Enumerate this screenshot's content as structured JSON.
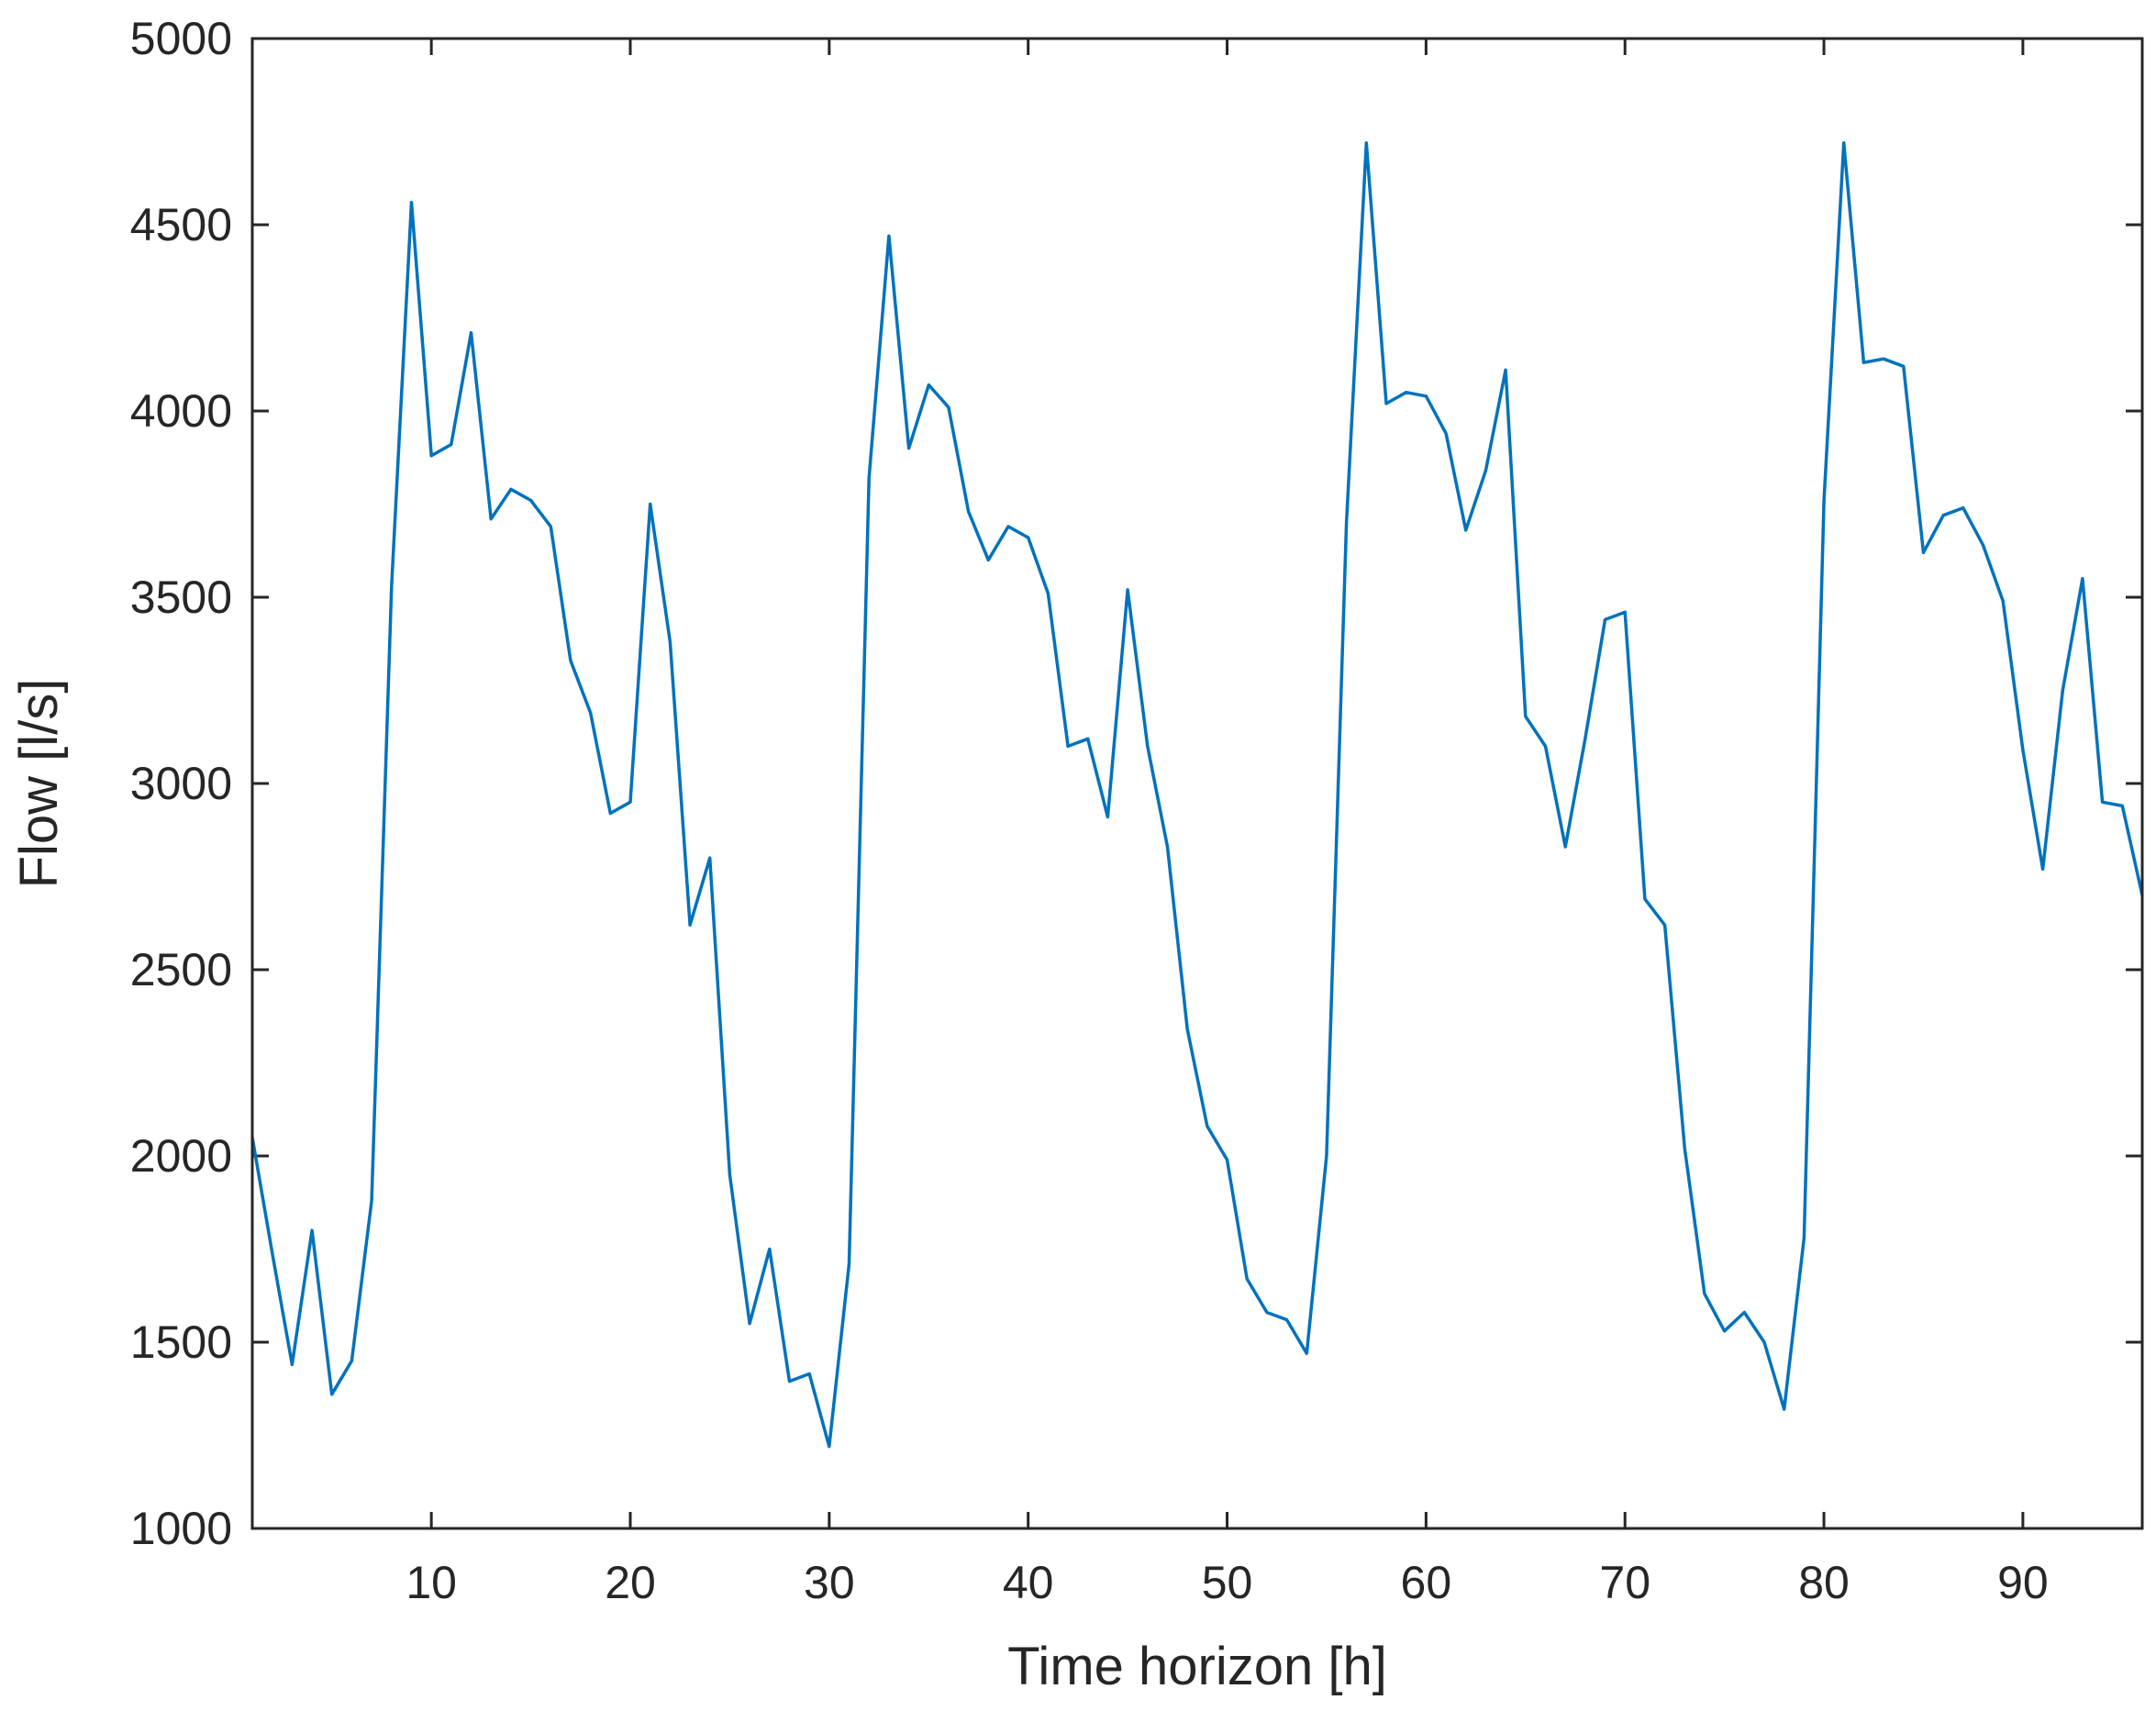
{
  "chart_data": {
    "type": "line",
    "xlabel": "Time horizon [h]",
    "ylabel": "Flow [l/s]",
    "xlim": [
      1,
      96
    ],
    "ylim": [
      1000,
      5000
    ],
    "xticks": [
      10,
      20,
      30,
      40,
      50,
      60,
      70,
      80,
      90
    ],
    "yticks": [
      1000,
      1500,
      2000,
      2500,
      3000,
      3500,
      4000,
      4500,
      5000
    ],
    "grid": false,
    "series": [
      {
        "color": "#0072BD",
        "x": [
          1,
          2,
          3,
          4,
          5,
          6,
          7,
          8,
          9,
          10,
          11,
          12,
          13,
          14,
          15,
          16,
          17,
          18,
          19,
          20,
          21,
          22,
          23,
          24,
          25,
          26,
          27,
          28,
          29,
          30,
          31,
          32,
          33,
          34,
          35,
          36,
          37,
          38,
          39,
          40,
          41,
          42,
          43,
          44,
          45,
          46,
          47,
          48,
          49,
          50,
          51,
          52,
          53,
          54,
          55,
          56,
          57,
          58,
          59,
          60,
          61,
          62,
          63,
          64,
          65,
          66,
          67,
          68,
          69,
          70,
          71,
          72,
          73,
          74,
          75,
          76,
          77,
          78,
          79,
          80,
          81,
          82,
          83,
          84,
          85,
          86,
          87,
          88,
          89,
          90,
          91,
          92,
          93,
          94,
          95,
          96
        ],
        "y": [
          2050,
          1740,
          1440,
          1800,
          1360,
          1450,
          1880,
          3530,
          4560,
          3880,
          3910,
          4210,
          3710,
          3790,
          3760,
          3690,
          3330,
          3190,
          2920,
          2950,
          3750,
          3380,
          2620,
          2800,
          1950,
          1550,
          1750,
          1395,
          1415,
          1220,
          1710,
          3820,
          4470,
          3900,
          4070,
          4010,
          3730,
          3600,
          3690,
          3660,
          3510,
          3100,
          3120,
          2910,
          3520,
          3100,
          2830,
          2340,
          2080,
          1990,
          1670,
          1580,
          1560,
          1470,
          2000,
          3700,
          4720,
          4020,
          4050,
          4040,
          3940,
          3680,
          3840,
          4110,
          3180,
          3100,
          2830,
          3120,
          3440,
          3460,
          2690,
          2620,
          2020,
          1630,
          1530,
          1580,
          1500,
          1320,
          1780,
          3760,
          4720,
          4130,
          4140,
          4120,
          3620,
          3720,
          3740,
          3640,
          3490,
          3090,
          2770,
          3250,
          3550,
          2950,
          2940,
          2700
        ]
      }
    ]
  }
}
